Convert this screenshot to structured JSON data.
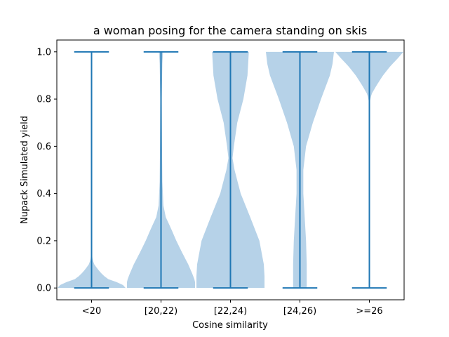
{
  "chart_data": {
    "type": "violin",
    "title": "a woman posing for the camera standing on skis",
    "xlabel": "Cosine similarity",
    "ylabel": "Nupack Simulated yield",
    "categories": [
      "<20",
      "[20,22)",
      "[22,24)",
      "[24,26)",
      ">=26"
    ],
    "ylim": [
      -0.05,
      1.05
    ],
    "yticks": [
      0.0,
      0.2,
      0.4,
      0.6,
      0.8,
      1.0
    ],
    "yticklabels": [
      "0.0",
      "0.2",
      "0.4",
      "0.6",
      "0.8",
      "1.0"
    ],
    "grid": false,
    "colors": {
      "body": "#9ec3e0",
      "line": "#1f77b4"
    },
    "violins": [
      {
        "min": 0.0,
        "max": 1.0,
        "profile": [
          [
            0.0,
            1.0
          ],
          [
            0.01,
            0.95
          ],
          [
            0.02,
            0.85
          ],
          [
            0.03,
            0.62
          ],
          [
            0.04,
            0.45
          ],
          [
            0.06,
            0.3
          ],
          [
            0.08,
            0.18
          ],
          [
            0.1,
            0.08
          ],
          [
            0.12,
            0.03
          ],
          [
            0.15,
            0.01
          ],
          [
            0.2,
            0.0
          ],
          [
            1.0,
            0.0
          ]
        ]
      },
      {
        "min": 0.0,
        "max": 1.0,
        "profile": [
          [
            0.0,
            1.0
          ],
          [
            0.03,
            1.0
          ],
          [
            0.06,
            0.92
          ],
          [
            0.1,
            0.8
          ],
          [
            0.15,
            0.62
          ],
          [
            0.2,
            0.45
          ],
          [
            0.25,
            0.3
          ],
          [
            0.3,
            0.14
          ],
          [
            0.35,
            0.07
          ],
          [
            0.45,
            0.04
          ],
          [
            0.6,
            0.03
          ],
          [
            0.8,
            0.02
          ],
          [
            0.95,
            0.04
          ],
          [
            1.0,
            0.06
          ]
        ]
      },
      {
        "min": 0.0,
        "max": 1.0,
        "profile": [
          [
            0.0,
            1.0
          ],
          [
            0.05,
            1.0
          ],
          [
            0.1,
            0.98
          ],
          [
            0.2,
            0.85
          ],
          [
            0.3,
            0.58
          ],
          [
            0.4,
            0.3
          ],
          [
            0.5,
            0.12
          ],
          [
            0.55,
            0.06
          ],
          [
            0.6,
            0.1
          ],
          [
            0.7,
            0.2
          ],
          [
            0.8,
            0.38
          ],
          [
            0.9,
            0.5
          ],
          [
            1.0,
            0.54
          ]
        ]
      },
      {
        "min": 0.0,
        "max": 1.0,
        "profile": [
          [
            0.0,
            0.2
          ],
          [
            0.1,
            0.2
          ],
          [
            0.2,
            0.18
          ],
          [
            0.3,
            0.14
          ],
          [
            0.4,
            0.1
          ],
          [
            0.5,
            0.1
          ],
          [
            0.6,
            0.18
          ],
          [
            0.7,
            0.38
          ],
          [
            0.8,
            0.62
          ],
          [
            0.9,
            0.88
          ],
          [
            0.95,
            0.96
          ],
          [
            1.0,
            1.0
          ]
        ]
      },
      {
        "min": 0.0,
        "max": 1.0,
        "profile": [
          [
            0.0,
            0.0
          ],
          [
            0.78,
            0.0
          ],
          [
            0.82,
            0.06
          ],
          [
            0.86,
            0.22
          ],
          [
            0.9,
            0.4
          ],
          [
            0.94,
            0.62
          ],
          [
            0.97,
            0.82
          ],
          [
            1.0,
            1.0
          ]
        ]
      }
    ]
  }
}
